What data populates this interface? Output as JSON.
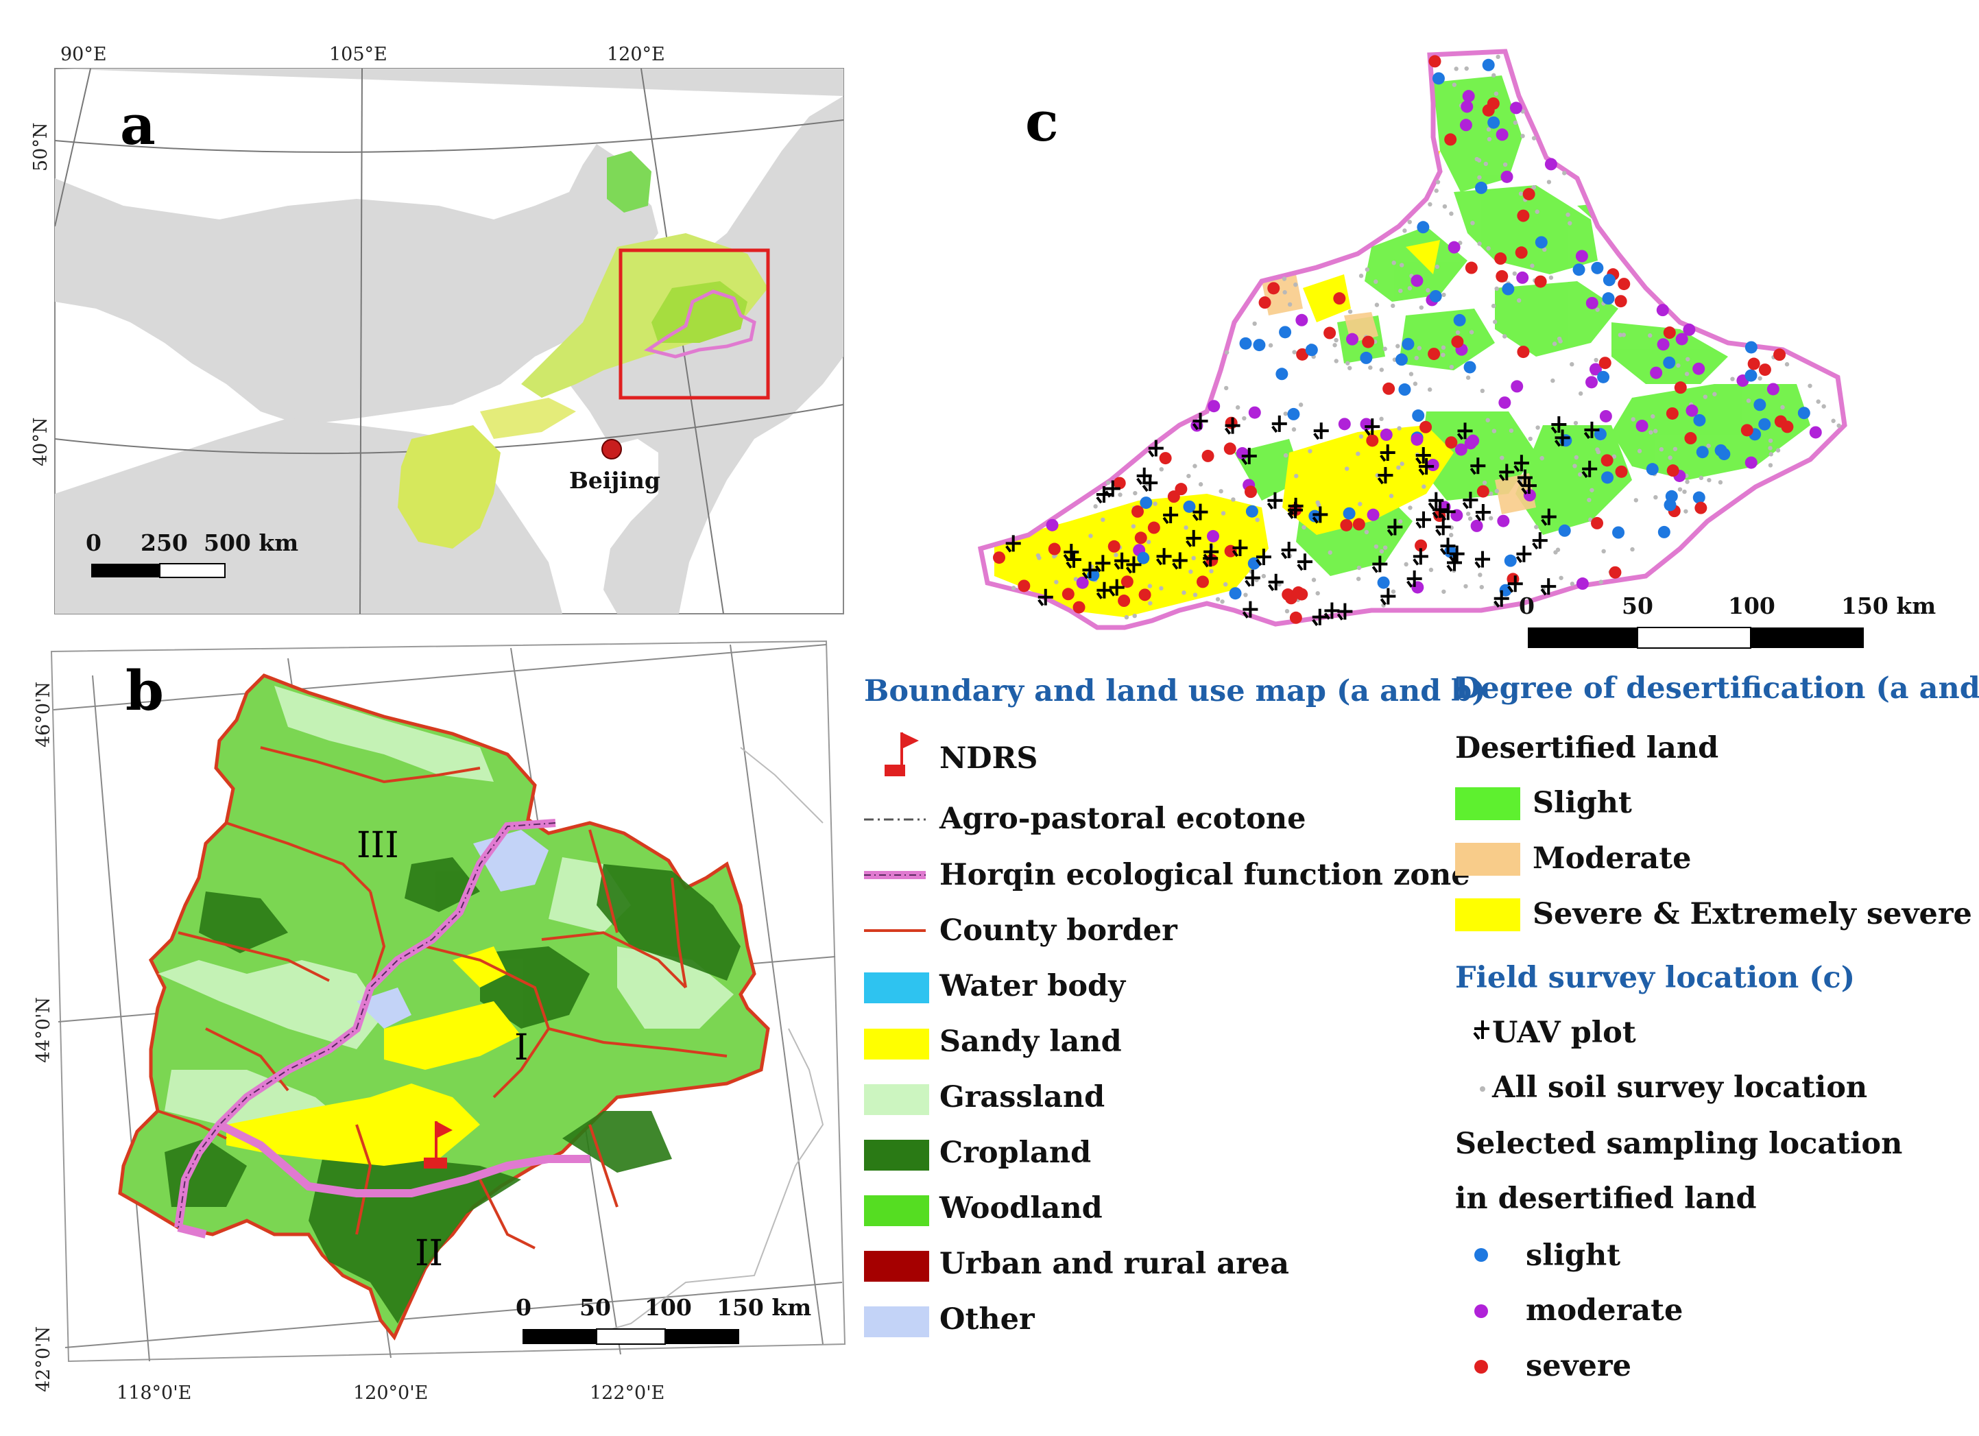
{
  "colors": {
    "land_grey": "#d9d9d9",
    "sea_white": "#ffffff",
    "pink_boundary": "#e07ad0",
    "county_border": "#d63b1f",
    "red_box": "#e02020",
    "water_body": "#2ec3f0",
    "sandy_land": "#ffff00",
    "grassland": "#ccf5c0",
    "cropland": "#2a7a15",
    "woodland": "#55dd22",
    "urban": "#a50000",
    "other": "#c3d3f7",
    "slight": "#5ef02f",
    "moderate": "#f8cc8a",
    "severe": "#ffff00",
    "dot_slight": "#1e78e0",
    "dot_moderate": "#b022d8",
    "dot_severe": "#e02020",
    "dot_soil": "#b8b8b8"
  },
  "panel_a": {
    "label": "a",
    "lon_ticks": [
      "90°E",
      "105°E",
      "120°E"
    ],
    "lat_ticks": [
      "50°N",
      "40°N"
    ],
    "city": "Beijing",
    "scalebar": [
      "0",
      "250",
      "500 km"
    ]
  },
  "panel_b": {
    "label": "b",
    "lon_ticks": [
      "118°0'E",
      "120°0'E",
      "122°0'E"
    ],
    "lat_ticks": [
      "46°0'N",
      "44°0'N",
      "42°0'N"
    ],
    "regions": [
      "III",
      "I",
      "II"
    ],
    "scalebar": [
      "0",
      "50",
      "100",
      "150 km"
    ]
  },
  "panel_c": {
    "label": "c",
    "scalebar": [
      "0",
      "50",
      "100",
      "150 km"
    ]
  },
  "legend_left": {
    "title": "Boundary and land use map (a and b)",
    "items": [
      {
        "label": "NDRS",
        "icon": "flag-icon"
      },
      {
        "label": "Agro-pastoral ecotone",
        "icon": "dash-dot-line"
      },
      {
        "label": "Horqin ecological function zone",
        "icon": "pink-line"
      },
      {
        "label": "County border",
        "icon": "red-line"
      },
      {
        "label": "Water body",
        "color_key": "water_body"
      },
      {
        "label": "Sandy land",
        "color_key": "sandy_land"
      },
      {
        "label": "Grassland",
        "color_key": "grassland"
      },
      {
        "label": "Cropland",
        "color_key": "cropland"
      },
      {
        "label": "Woodland",
        "color_key": "woodland"
      },
      {
        "label": "Urban and rural area",
        "color_key": "urban"
      },
      {
        "label": "Other",
        "color_key": "other"
      }
    ]
  },
  "legend_right": {
    "title": "Degree of desertification  (a and c)",
    "subtitle": "Desertified land",
    "classes": [
      {
        "label": "Slight",
        "color_key": "slight"
      },
      {
        "label": "Moderate",
        "color_key": "moderate"
      },
      {
        "label": "Severe & Extremely severe",
        "color_key": "severe"
      }
    ],
    "field_title": "Field survey location (c)",
    "uav": "UAV plot",
    "soil": "All soil survey location",
    "selected_line1": "Selected sampling location",
    "selected_line2": "in desertified land",
    "dots": [
      {
        "label": "slight",
        "color_key": "dot_slight"
      },
      {
        "label": "moderate",
        "color_key": "dot_moderate"
      },
      {
        "label": "severe",
        "color_key": "dot_severe"
      }
    ]
  }
}
